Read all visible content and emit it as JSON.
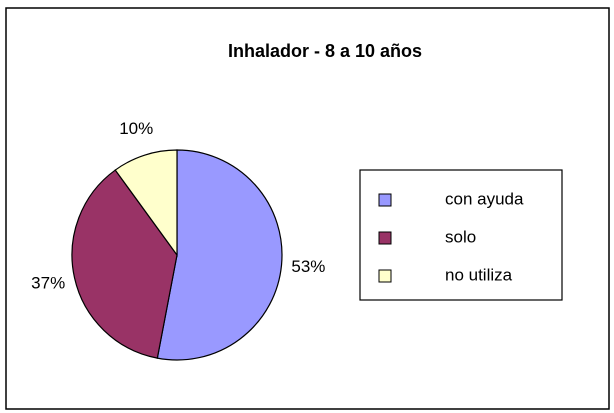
{
  "chart_data": {
    "type": "pie",
    "title": "Inhalador - 8 a 10 años",
    "categories": [
      "con ayuda",
      "solo",
      "no utiliza"
    ],
    "values": [
      53,
      37,
      10
    ],
    "value_labels": [
      "53%",
      "37%",
      "10%"
    ],
    "colors": [
      "#9999ff",
      "#993366",
      "#ffffcc"
    ],
    "legend": "right"
  }
}
